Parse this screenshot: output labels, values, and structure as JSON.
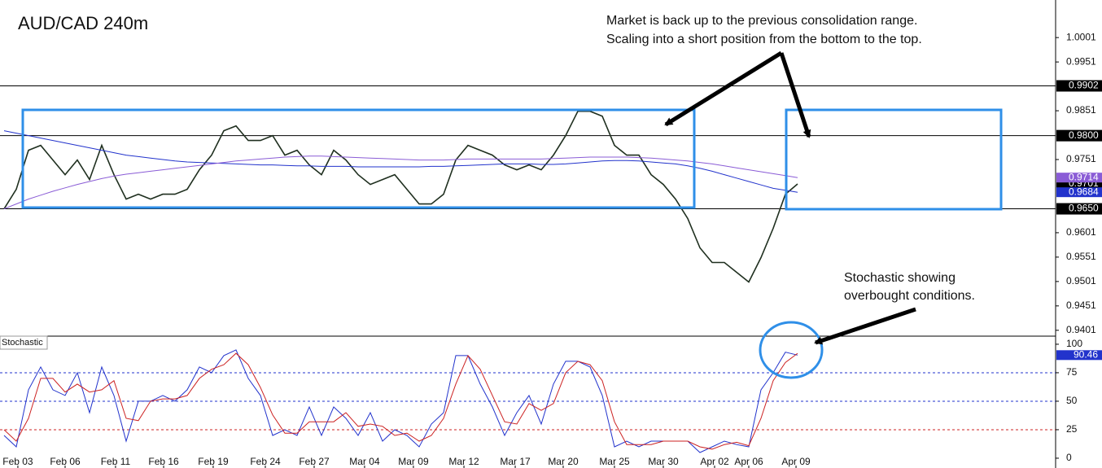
{
  "chart_data": [
    {
      "type": "line",
      "title": "AUD/CAD 240m",
      "annotations": [
        "Market is back up to the previous consolidation range.",
        "Scaling into a short position from the bottom to the top.",
        "Stochastic showing",
        "overbought conditions."
      ],
      "x": [
        0,
        1,
        2,
        3,
        4,
        5,
        6,
        7,
        8,
        9,
        10,
        11,
        12,
        13,
        14,
        15,
        16,
        17,
        18,
        19,
        20,
        21,
        22,
        23,
        24,
        25,
        26,
        27,
        28,
        29,
        30,
        31,
        32,
        33,
        34,
        35,
        36,
        37,
        38,
        39,
        40,
        41,
        42,
        43,
        44,
        45,
        46,
        47,
        48,
        49,
        50,
        51,
        52,
        53,
        54,
        55,
        56,
        57,
        58,
        59,
        60,
        61,
        62,
        63,
        64,
        65
      ],
      "xlim": [
        -0.333,
        86.133
      ],
      "ylim": [
        0.9389,
        1.0078
      ],
      "yticks": [
        1.0001,
        0.9951,
        0.9851,
        0.9751,
        0.9601,
        0.9551,
        0.9501,
        0.9451,
        0.9401
      ],
      "levels": [
        0.9902,
        {
          "value": 0.98,
          "label": "0.9800"
        },
        {
          "value": 0.965,
          "label": "0.9650"
        }
      ],
      "series": [
        {
          "color": "#1f2f1f",
          "values": [
            0.965,
            0.969,
            0.977,
            0.978,
            0.975,
            0.972,
            0.975,
            0.971,
            0.978,
            0.972,
            0.967,
            0.968,
            0.967,
            0.968,
            0.968,
            0.969,
            0.973,
            0.976,
            0.981,
            0.982,
            0.979,
            0.979,
            0.98,
            0.976,
            0.977,
            0.974,
            0.972,
            0.977,
            0.975,
            0.972,
            0.97,
            0.971,
            0.972,
            0.969,
            0.966,
            0.966,
            0.968,
            0.975,
            0.978,
            0.977,
            0.976,
            0.974,
            0.973,
            0.974,
            0.973,
            0.976,
            0.98,
            0.985,
            0.985,
            0.984,
            0.978,
            0.976,
            0.976,
            0.972,
            0.97,
            0.967,
            0.963,
            0.957,
            0.954,
            0.954,
            0.952,
            0.95,
            0.955,
            0.961,
            0.968,
            0.9701
          ]
        },
        {
          "color": "#2233cc",
          "values": [
            0.981,
            0.9805,
            0.98,
            0.9795,
            0.979,
            0.9785,
            0.978,
            0.9775,
            0.977,
            0.9765,
            0.976,
            0.9757,
            0.9754,
            0.9751,
            0.9748,
            0.9746,
            0.9745,
            0.9744,
            0.9743,
            0.9742,
            0.9741,
            0.974,
            0.974,
            0.9739,
            0.9738,
            0.9738,
            0.9737,
            0.9737,
            0.9737,
            0.9736,
            0.9736,
            0.9736,
            0.9736,
            0.9736,
            0.9736,
            0.9737,
            0.9737,
            0.9738,
            0.9739,
            0.974,
            0.9741,
            0.9742,
            0.9742,
            0.9742,
            0.9741,
            0.9741,
            0.9742,
            0.9744,
            0.9746,
            0.9748,
            0.9749,
            0.9749,
            0.9748,
            0.9746,
            0.9744,
            0.9742,
            0.9738,
            0.9733,
            0.9727,
            0.972,
            0.9713,
            0.9706,
            0.9699,
            0.9692,
            0.9688,
            0.9684
          ]
        },
        {
          "color": "#8a5cd6",
          "values": [
            0.965,
            0.966,
            0.967,
            0.9678,
            0.9686,
            0.9693,
            0.97,
            0.9706,
            0.9712,
            0.9717,
            0.9721,
            0.9724,
            0.9727,
            0.973,
            0.9733,
            0.9736,
            0.9739,
            0.9742,
            0.9745,
            0.9748,
            0.975,
            0.9752,
            0.9754,
            0.9756,
            0.9757,
            0.9758,
            0.9758,
            0.9757,
            0.9756,
            0.9755,
            0.9754,
            0.9753,
            0.9752,
            0.9751,
            0.975,
            0.975,
            0.975,
            0.9751,
            0.9752,
            0.9752,
            0.9752,
            0.9752,
            0.9752,
            0.9752,
            0.9752,
            0.9753,
            0.9754,
            0.9755,
            0.9756,
            0.9756,
            0.9756,
            0.9756,
            0.9755,
            0.9754,
            0.9752,
            0.975,
            0.9748,
            0.9745,
            0.9742,
            0.9738,
            0.9734,
            0.973,
            0.9726,
            0.9722,
            0.9718,
            0.9714
          ]
        }
      ]
    },
    {
      "type": "line",
      "title": "Stochastic",
      "x": [
        0,
        1,
        2,
        3,
        4,
        5,
        6,
        7,
        8,
        9,
        10,
        11,
        12,
        13,
        14,
        15,
        16,
        17,
        18,
        19,
        20,
        21,
        22,
        23,
        24,
        25,
        26,
        27,
        28,
        29,
        30,
        31,
        32,
        33,
        34,
        35,
        36,
        37,
        38,
        39,
        40,
        41,
        42,
        43,
        44,
        45,
        46,
        47,
        48,
        49,
        50,
        51,
        52,
        53,
        54,
        55,
        56,
        57,
        58,
        59,
        60,
        61,
        62,
        63,
        64,
        65
      ],
      "xlim": [
        -0.333,
        86.133
      ],
      "xticks": [
        {
          "value": 1.13,
          "label": "Feb 03"
        },
        {
          "value": 5,
          "label": "Feb 06"
        },
        {
          "value": 9.13,
          "label": "Feb 11"
        },
        {
          "value": 13.07,
          "label": "Feb 16"
        },
        {
          "value": 17.13,
          "label": "Feb 19"
        },
        {
          "value": 21.4,
          "label": "Feb 24"
        },
        {
          "value": 25.4,
          "label": "Feb 27"
        },
        {
          "value": 29.53,
          "label": "Mar 04"
        },
        {
          "value": 33.53,
          "label": "Mar 09"
        },
        {
          "value": 37.67,
          "label": "Mar 12"
        },
        {
          "value": 41.87,
          "label": "Mar 17"
        },
        {
          "value": 45.8,
          "label": "Mar 20"
        },
        {
          "value": 50,
          "label": "Mar 25"
        },
        {
          "value": 54,
          "label": "Mar 30"
        },
        {
          "value": 58.2,
          "label": "Apr 02"
        },
        {
          "value": 61,
          "label": "Apr 06"
        },
        {
          "value": 64.87,
          "label": "Apr 09"
        }
      ],
      "ylim": [
        -8.6,
        107.1
      ],
      "yticks": [
        0,
        25,
        50,
        75,
        100
      ],
      "levels": [
        {
          "value": 75,
          "color": "#2233cc"
        },
        {
          "value": 50,
          "color": "#2233cc"
        },
        {
          "value": 25,
          "color": "#cc2222"
        }
      ],
      "series": [
        {
          "color": "#2233cc",
          "values": [
            20,
            10,
            60,
            80,
            60,
            55,
            75,
            40,
            80,
            55,
            15,
            50,
            50,
            55,
            50,
            60,
            80,
            75,
            90,
            95,
            70,
            55,
            20,
            25,
            20,
            45,
            20,
            45,
            35,
            20,
            40,
            15,
            25,
            20,
            10,
            30,
            40,
            90,
            90,
            65,
            45,
            20,
            40,
            55,
            30,
            65,
            85,
            85,
            80,
            55,
            10,
            15,
            10,
            15,
            15,
            15,
            15,
            5,
            10,
            15,
            12,
            10,
            60,
            75,
            93,
            90.46
          ]
        },
        {
          "color": "#cc2222",
          "values": [
            25,
            15,
            35,
            70,
            70,
            58,
            65,
            58,
            60,
            68,
            35,
            33,
            50,
            52,
            52,
            55,
            70,
            78,
            82,
            92,
            82,
            62,
            38,
            22,
            22,
            32,
            32,
            32,
            40,
            28,
            30,
            28,
            20,
            22,
            15,
            20,
            35,
            65,
            90,
            78,
            55,
            32,
            30,
            48,
            42,
            48,
            75,
            85,
            82,
            68,
            32,
            12,
            12,
            12,
            15,
            15,
            15,
            10,
            8,
            12,
            14,
            11,
            35,
            68,
            84,
            92
          ]
        }
      ]
    }
  ]
}
